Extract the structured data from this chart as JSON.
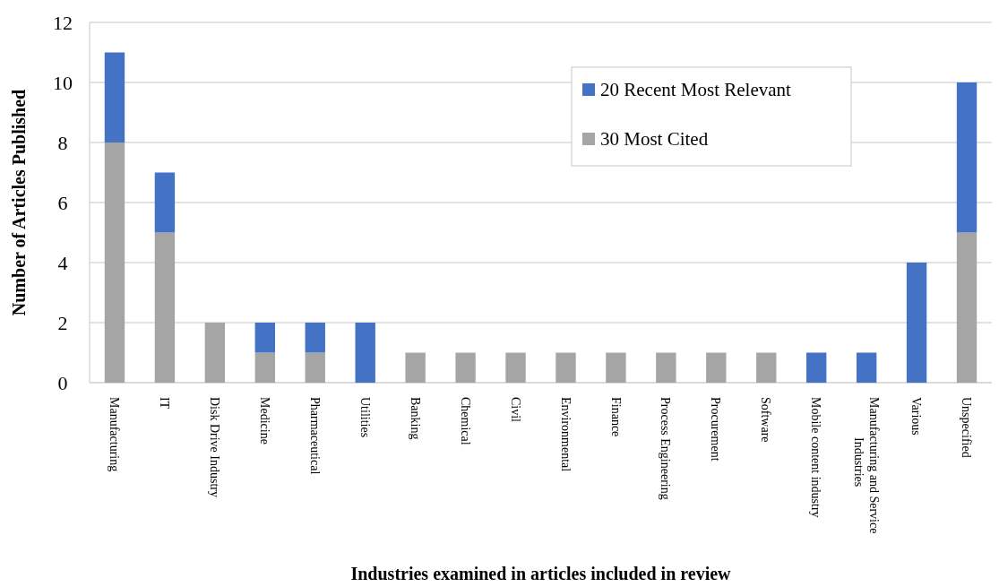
{
  "chart_data": {
    "type": "bar",
    "stacked": true,
    "xlabel": "Industries examined in articles included in review",
    "ylabel": "Number of Articles Published",
    "categories": [
      "Manufacturing",
      "IT",
      "Disk Drive Industry",
      "Medicine",
      "Pharmaceutical",
      "Utilities",
      "Banking",
      "Chemical",
      "Civil",
      "Environmental",
      "Finance",
      "Process Engineering",
      "Procurement",
      "Software",
      "Mobile content industry",
      "Manufacturing and Service Industries",
      "Various",
      "Unspecified"
    ],
    "series": [
      {
        "name": "30 Most Cited",
        "color": "#a5a5a5",
        "values": [
          8,
          5,
          2,
          1,
          1,
          0,
          1,
          1,
          1,
          1,
          1,
          1,
          1,
          1,
          0,
          0,
          0,
          5
        ]
      },
      {
        "name": "20 Recent Most Relevant",
        "color": "#4472c4",
        "values": [
          3,
          2,
          0,
          1,
          1,
          2,
          0,
          0,
          0,
          0,
          0,
          0,
          0,
          0,
          1,
          1,
          4,
          5
        ]
      }
    ],
    "ylim": [
      0,
      12
    ],
    "yticks": [
      0,
      2,
      4,
      6,
      8,
      10,
      12
    ],
    "grid": "y",
    "legend": "top right"
  }
}
